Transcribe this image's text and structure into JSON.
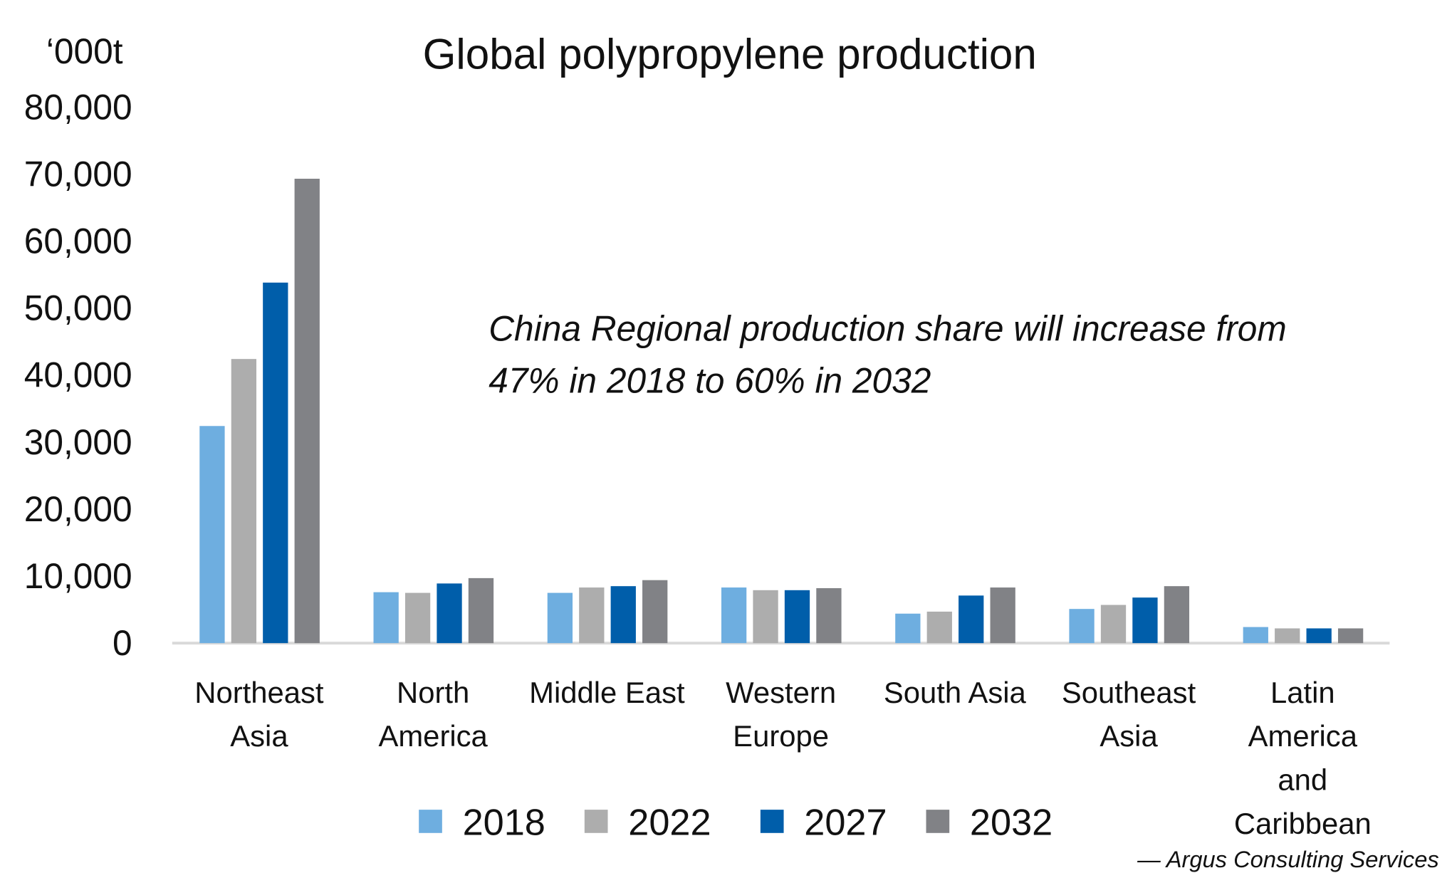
{
  "chart_data": {
    "type": "bar",
    "title": "Global polypropylene production",
    "ylabel": "‘000t",
    "xlabel": "",
    "ylim": [
      0,
      80000
    ],
    "yticks": [
      "0",
      "10,000",
      "20,000",
      "30,000",
      "40,000",
      "50,000",
      "60,000",
      "70,000",
      "80,000"
    ],
    "ytick_values": [
      0,
      10000,
      20000,
      30000,
      40000,
      50000,
      60000,
      70000,
      80000
    ],
    "categories": [
      [
        "Northeast",
        "Asia"
      ],
      [
        "North",
        "America"
      ],
      [
        "Middle East"
      ],
      [
        "Western",
        "Europe"
      ],
      [
        "South Asia"
      ],
      [
        "Southeast",
        "Asia"
      ],
      [
        "Latin",
        "America",
        "and",
        "Caribbean"
      ]
    ],
    "series": [
      {
        "name": "2018",
        "color": "#6eaee0",
        "values": [
          32400,
          7600,
          7500,
          8300,
          4400,
          5100,
          2400
        ]
      },
      {
        "name": "2022",
        "color": "#adadad",
        "values": [
          42400,
          7500,
          8300,
          7900,
          4700,
          5700,
          2200
        ]
      },
      {
        "name": "2027",
        "color": "#005eaa",
        "values": [
          53800,
          8900,
          8500,
          7900,
          7100,
          6800,
          2200
        ]
      },
      {
        "name": "2032",
        "color": "#818286",
        "values": [
          69300,
          9700,
          9400,
          8200,
          8300,
          8500,
          2200
        ]
      }
    ],
    "annotation": [
      "China Regional production share will increase from",
      "47% in 2018 to 60% in 2032"
    ],
    "legend_position": "bottom",
    "grid": false,
    "source": "— Argus Consulting Services"
  }
}
